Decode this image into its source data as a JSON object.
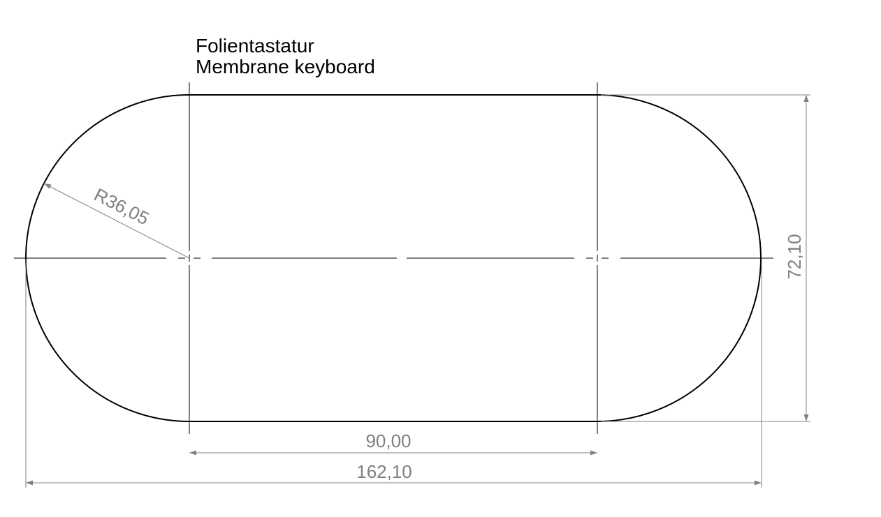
{
  "title": {
    "line1": "Folientastatur",
    "line2": "Membrane keyboard"
  },
  "dimensions": {
    "radius": "R36,05",
    "straight_length": "90,00",
    "overall_length": "162,10",
    "height": "72,10"
  },
  "colors": {
    "outline": "#000000",
    "dimension": "#808080",
    "background": "#ffffff"
  }
}
